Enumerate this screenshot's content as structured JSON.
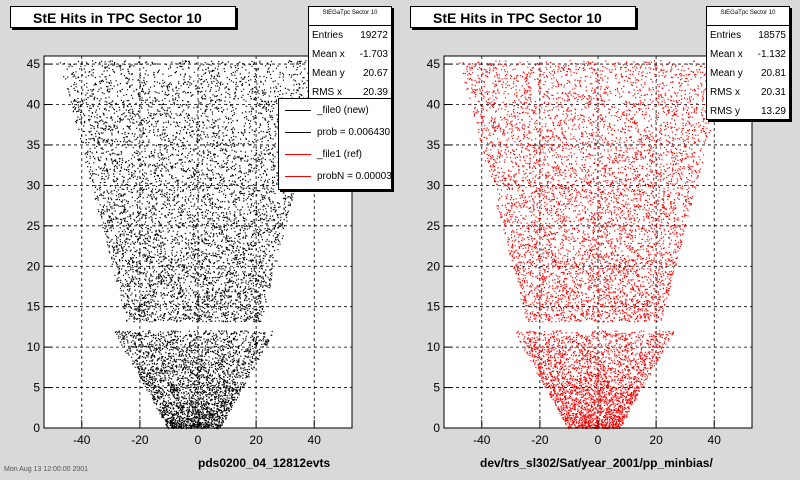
{
  "panels": [
    {
      "title": "StE Hits in TPC Sector 10",
      "stats": {
        "header": "StEGaTpc Sector 10",
        "rows": [
          {
            "label": "Entries",
            "value": "19272"
          },
          {
            "label": "Mean x",
            "value": "-1.703"
          },
          {
            "label": "Mean y",
            "value": "20.67"
          },
          {
            "label": "RMS x",
            "value": "20.39"
          }
        ]
      },
      "legend": [
        {
          "label": "_file0 (new)",
          "color": "#000000"
        },
        {
          "label": "prob = 0.006430",
          "color": "#000000"
        },
        {
          "label": "_file1 (ref)",
          "color": "#ff0000"
        },
        {
          "label": "probN = 0.00003",
          "color": "#ff0000"
        }
      ],
      "xlabel": "pds0200_04_12812evts",
      "corner_text": "Mon Aug 13 12:00:00 2001"
    },
    {
      "title": "StE Hits in TPC Sector 10",
      "stats": {
        "header": "StEGaTpc Sector 10",
        "rows": [
          {
            "label": "Entries",
            "value": "18575"
          },
          {
            "label": "Mean x",
            "value": "-1.132"
          },
          {
            "label": "Mean y",
            "value": "20.81"
          },
          {
            "label": "RMS x",
            "value": "20.31"
          },
          {
            "label": "RMS y",
            "value": "13.29"
          }
        ]
      },
      "xlabel": "dev/trs_sl302/Sat/year_2001/pp_minbias/"
    }
  ],
  "chart_data": [
    {
      "type": "scatter",
      "title": "StE Hits in TPC Sector 10",
      "xlabel": "pds0200_04_12812evts",
      "ylabel": "",
      "xlim": [
        -53,
        53
      ],
      "ylim": [
        0,
        46
      ],
      "xticks": [
        -40,
        -20,
        0,
        20,
        40
      ],
      "yticks": [
        0,
        5,
        10,
        15,
        20,
        25,
        30,
        35,
        40,
        45
      ],
      "xtick_labels": [
        "-40",
        "-20",
        "0",
        "20",
        "40"
      ],
      "ytick_labels": [
        "0",
        "5",
        "10",
        "15",
        "20",
        "25",
        "30",
        "35",
        "40",
        "45"
      ],
      "grid": true,
      "marker_color": "#000000",
      "series": [
        {
          "name": "_file0 (new)",
          "entries": 19272,
          "mean_x": -1.703,
          "mean_y": 20.67,
          "rms_x": 20.39
        }
      ]
    },
    {
      "type": "scatter",
      "title": "StE Hits in TPC Sector 10",
      "xlabel": "dev/trs_sl302/Sat/year_2001/pp_minbias/",
      "ylabel": "",
      "xlim": [
        -53,
        53
      ],
      "ylim": [
        0,
        46
      ],
      "xticks": [
        -40,
        -20,
        0,
        20,
        40
      ],
      "yticks": [
        0,
        5,
        10,
        15,
        20,
        25,
        30,
        35,
        40,
        45
      ],
      "xtick_labels": [
        "-40",
        "-20",
        "0",
        "20",
        "40"
      ],
      "ytick_labels": [
        "0",
        "5",
        "10",
        "15",
        "20",
        "25",
        "30",
        "35",
        "40",
        "45"
      ],
      "grid": true,
      "marker_color": "#ff0000",
      "series": [
        {
          "name": "_file1 (ref)",
          "entries": 18575,
          "mean_x": -1.132,
          "mean_y": 20.81,
          "rms_x": 20.31,
          "rms_y": 13.29
        }
      ]
    }
  ]
}
